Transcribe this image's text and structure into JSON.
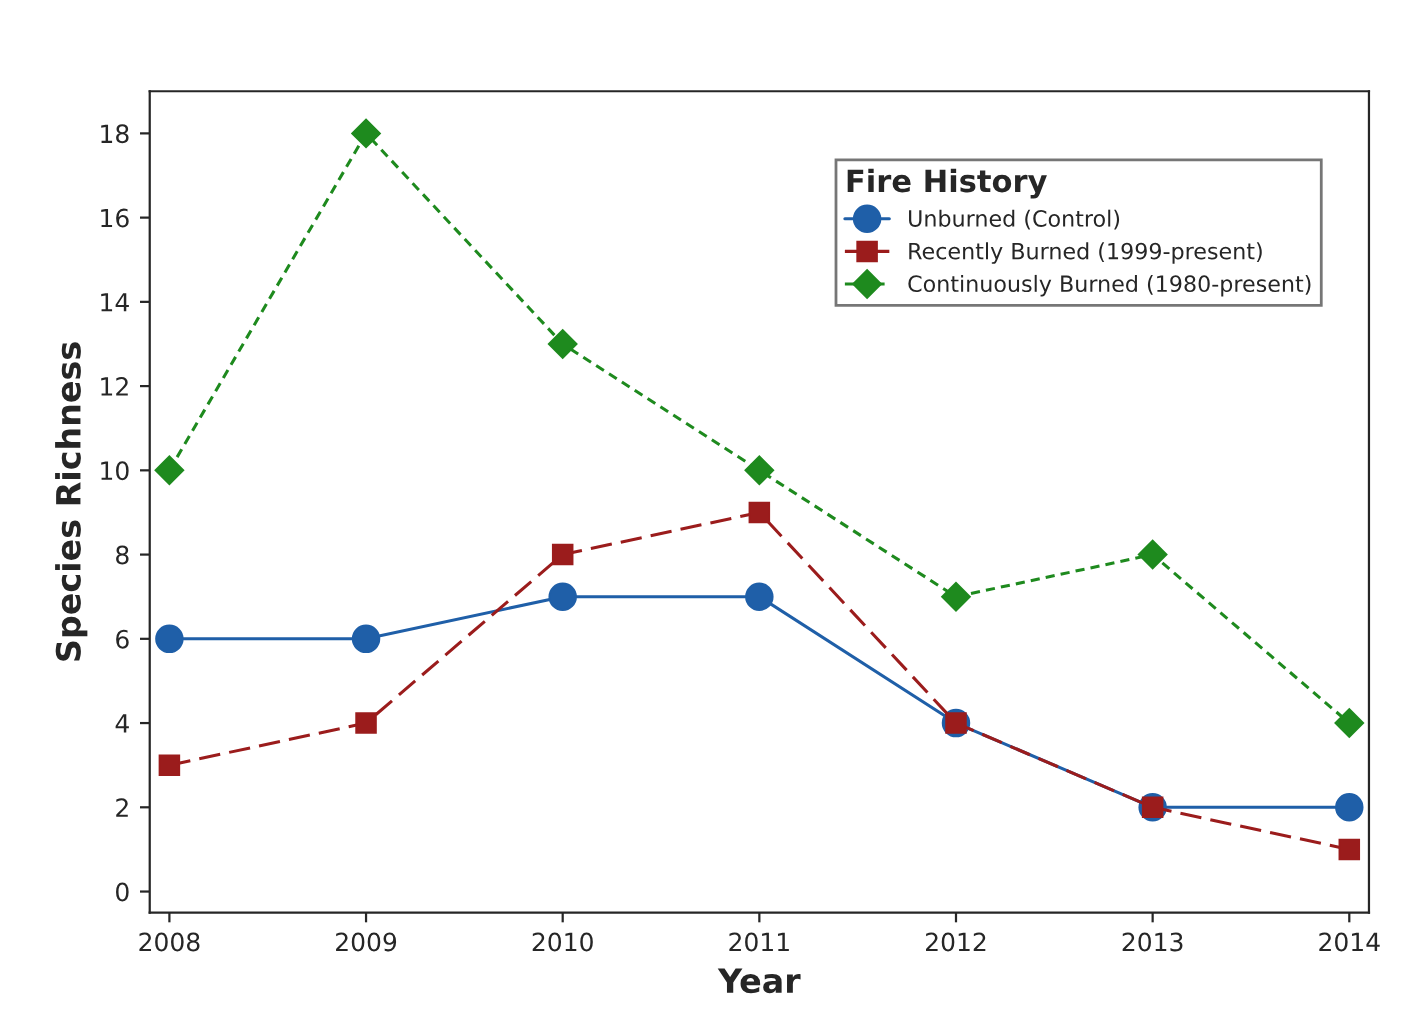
{
  "chart_data": {
    "type": "line",
    "xlabel": "Year",
    "ylabel": "Species Richness",
    "legend_title": "Fire History",
    "x": [
      2008,
      2009,
      2010,
      2011,
      2012,
      2013,
      2014
    ],
    "series": [
      {
        "name": "Unburned (Control)",
        "color": "#1f5fa8",
        "marker": "circle",
        "line_style": "solid",
        "values": [
          6,
          6,
          7,
          7,
          4,
          2,
          2
        ]
      },
      {
        "name": "Recently Burned (1999-present)",
        "color": "#9b1c1c",
        "marker": "square",
        "line_style": "dashed",
        "values": [
          3,
          4,
          8,
          9,
          4,
          2,
          1
        ]
      },
      {
        "name": "Continuously Burned (1980-present)",
        "color": "#1e8a1e",
        "marker": "diamond",
        "line_style": "dotted",
        "values": [
          10,
          18,
          13,
          10,
          7,
          8,
          4
        ]
      }
    ],
    "xlim": [
      2007.9,
      2014.1
    ],
    "xticks": [
      2008,
      2009,
      2010,
      2011,
      2012,
      2013,
      2014
    ],
    "ylim": [
      -0.5,
      19
    ],
    "yticks": [
      0,
      2,
      4,
      6,
      8,
      10,
      12,
      14,
      16,
      18
    ],
    "grid": false,
    "legend": "top right"
  }
}
